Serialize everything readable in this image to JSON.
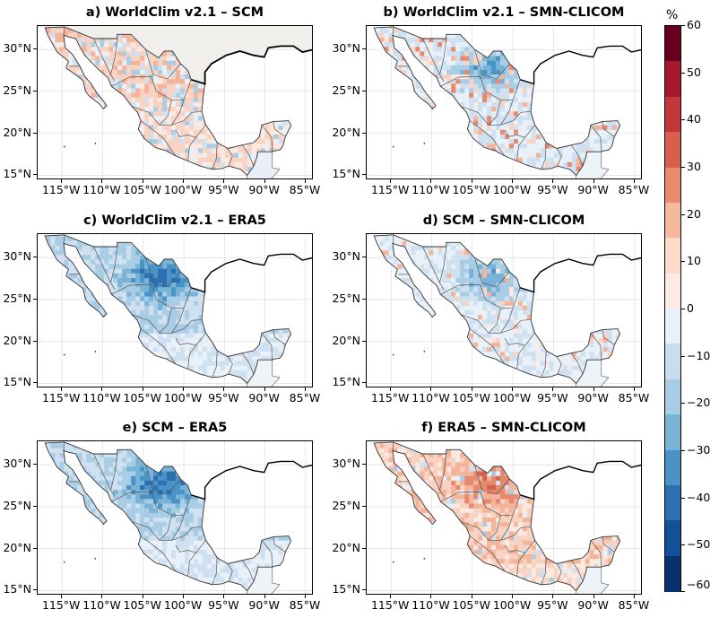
{
  "panels": [
    {
      "title": "a) WorldClim v2.1 – SCM",
      "pattern": "mixed-warm"
    },
    {
      "title": "b) WorldClim v2.1 – SMN-CLICOM",
      "pattern": "mixed-cool"
    },
    {
      "title": "c) WorldClim v2.1 – ERA5",
      "pattern": "cool"
    },
    {
      "title": "d) SCM – SMN-CLICOM",
      "pattern": "light-cool"
    },
    {
      "title": "e) SCM – ERA5",
      "pattern": "cool"
    },
    {
      "title": "f) ERA5 – SMN-CLICOM",
      "pattern": "warm"
    }
  ],
  "axes": {
    "y_ticks": [
      "30°N",
      "25°N",
      "20°N",
      "15°N"
    ],
    "x_ticks": [
      "115°W",
      "110°W",
      "105°W",
      "100°W",
      "95°W",
      "90°W",
      "85°W"
    ]
  },
  "colorbar": {
    "unit": "%",
    "ticks": [
      "60",
      "50",
      "40",
      "30",
      "20",
      "10",
      "0",
      "−10",
      "−20",
      "−30",
      "−40",
      "−50",
      "−60"
    ],
    "colors": [
      "#67001f",
      "#b2182b",
      "#d6604d",
      "#f4a582",
      "#fddbc7",
      "#fbe9e1",
      "#e6f0f8",
      "#c6dbef",
      "#9ecae1",
      "#6baed6",
      "#3182bd",
      "#08519c",
      "#08306b"
    ],
    "segment_colors": [
      "#67001f",
      "#a5172c",
      "#c43638",
      "#d6604d",
      "#e98b6e",
      "#f6b99c",
      "#fddbc7",
      "#fcebe3",
      "#e8f1f8",
      "#c9ddee",
      "#a6cde3",
      "#78b4d8",
      "#4a93c6",
      "#2c70b1",
      "#14509a",
      "#08306b"
    ]
  }
}
